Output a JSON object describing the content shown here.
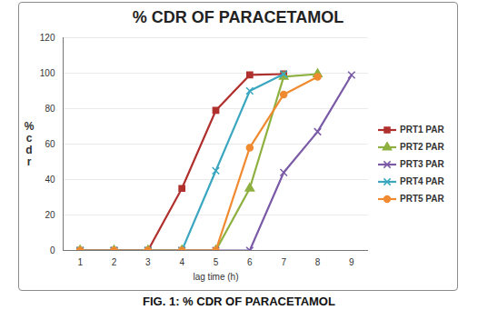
{
  "chart_data": {
    "type": "line",
    "title": "% CDR OF PARACETAMOL",
    "caption": "FIG. 1: % CDR OF PARACETAMOL",
    "x_label": "lag time (h)",
    "y_label": "%cdr",
    "x": [
      1,
      2,
      3,
      4,
      5,
      6,
      7,
      8,
      9
    ],
    "xlim": [
      0.5,
      9.5
    ],
    "xticks": [
      1,
      2,
      3,
      4,
      5,
      6,
      7,
      8,
      9
    ],
    "ylim": [
      0,
      120
    ],
    "yticks": [
      0,
      20,
      40,
      60,
      80,
      100,
      120
    ],
    "grid": true,
    "legend": "right",
    "series": [
      {
        "name": "PRT1 PAR",
        "color": "#b0302e",
        "marker": "square",
        "values": [
          0,
          0,
          0,
          35,
          79,
          99,
          99.5,
          null,
          null
        ]
      },
      {
        "name": "PRT2 PAR",
        "color": "#8db040",
        "marker": "triangle",
        "values": [
          0,
          0,
          0,
          0,
          0,
          35,
          98,
          99.5,
          null
        ]
      },
      {
        "name": "PRT3 PAR",
        "color": "#7a5aa6",
        "marker": "x",
        "values": [
          0,
          0,
          0,
          0,
          0,
          0,
          44,
          67,
          99
        ]
      },
      {
        "name": "PRT4 PAR",
        "color": "#3aa6c0",
        "marker": "x",
        "values": [
          0,
          0,
          0,
          0,
          45,
          90,
          99.5,
          null,
          null
        ]
      },
      {
        "name": "PRT5 PAR",
        "color": "#f08a30",
        "marker": "circle",
        "values": [
          0,
          0,
          0,
          0,
          0,
          58,
          88,
          98,
          null
        ]
      }
    ]
  }
}
